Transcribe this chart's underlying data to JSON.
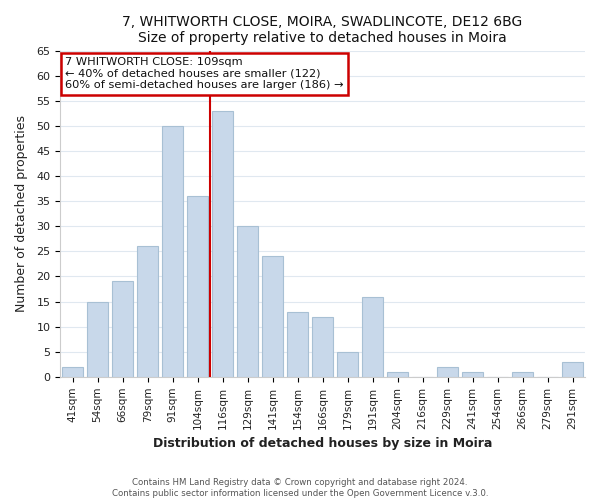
{
  "title": "7, WHITWORTH CLOSE, MOIRA, SWADLINCOTE, DE12 6BG",
  "subtitle": "Size of property relative to detached houses in Moira",
  "xlabel": "Distribution of detached houses by size in Moira",
  "ylabel": "Number of detached properties",
  "bar_labels": [
    "41sqm",
    "54sqm",
    "66sqm",
    "79sqm",
    "91sqm",
    "104sqm",
    "116sqm",
    "129sqm",
    "141sqm",
    "154sqm",
    "166sqm",
    "179sqm",
    "191sqm",
    "204sqm",
    "216sqm",
    "229sqm",
    "241sqm",
    "254sqm",
    "266sqm",
    "279sqm",
    "291sqm"
  ],
  "bar_values": [
    2,
    15,
    19,
    26,
    50,
    36,
    53,
    30,
    24,
    13,
    12,
    5,
    16,
    1,
    0,
    2,
    1,
    0,
    1,
    0,
    3
  ],
  "bar_color": "#c8d8ea",
  "bar_edge_color": "#a8c0d4",
  "redline_x": 5.5,
  "ylim": [
    0,
    65
  ],
  "yticks": [
    0,
    5,
    10,
    15,
    20,
    25,
    30,
    35,
    40,
    45,
    50,
    55,
    60,
    65
  ],
  "annotation_title": "7 WHITWORTH CLOSE: 109sqm",
  "annotation_line1": "← 40% of detached houses are smaller (122)",
  "annotation_line2": "60% of semi-detached houses are larger (186) →",
  "annotation_box_facecolor": "#ffffff",
  "annotation_box_edge": "#cc0000",
  "footer1": "Contains HM Land Registry data © Crown copyright and database right 2024.",
  "footer2": "Contains public sector information licensed under the Open Government Licence v.3.0.",
  "fig_facecolor": "#ffffff",
  "axes_facecolor": "#ffffff",
  "grid_color": "#e0e8f0"
}
